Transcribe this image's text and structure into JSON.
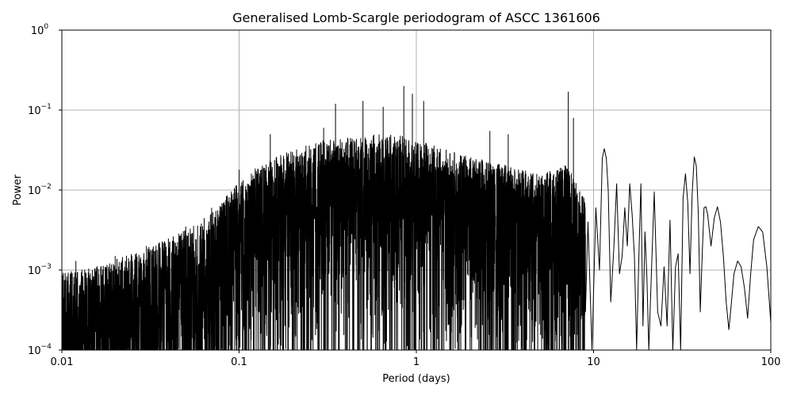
{
  "chart_data": {
    "type": "line",
    "title": "Generalised Lomb-Scargle periodogram of ASCC 1361606",
    "xlabel": "Period (days)",
    "ylabel": "Power",
    "xscale": "log",
    "yscale": "log",
    "xlim": [
      0.01,
      100
    ],
    "ylim": [
      0.0001,
      1
    ],
    "grid": true,
    "x_ticks": [
      {
        "value": 0.01,
        "label": "0.01"
      },
      {
        "value": 0.1,
        "label": "0.1"
      },
      {
        "value": 1,
        "label": "1"
      },
      {
        "value": 10,
        "label": "10"
      },
      {
        "value": 100,
        "label": "100"
      }
    ],
    "y_ticks": [
      {
        "value": 0.0001,
        "base": "10",
        "exp": "−4"
      },
      {
        "value": 0.001,
        "base": "10",
        "exp": "−3"
      },
      {
        "value": 0.01,
        "base": "10",
        "exp": "−2"
      },
      {
        "value": 0.1,
        "base": "10",
        "exp": "−1"
      },
      {
        "value": 1,
        "base": "10",
        "exp": "0"
      }
    ],
    "series": [
      {
        "color": "#000000",
        "envelope_x": [
          0.01,
          0.015,
          0.02,
          0.03,
          0.05,
          0.07,
          0.1,
          0.13,
          0.2,
          0.3,
          0.5,
          0.7,
          1,
          1.5,
          2,
          3,
          5,
          7,
          9
        ],
        "envelope_y": [
          0.0009,
          0.001,
          0.0013,
          0.0018,
          0.003,
          0.005,
          0.012,
          0.02,
          0.03,
          0.04,
          0.045,
          0.05,
          0.04,
          0.03,
          0.025,
          0.02,
          0.015,
          0.02,
          0.008
        ],
        "peaks": [
          {
            "x": 0.012,
            "y": 0.0013
          },
          {
            "x": 0.02,
            "y": 0.0015
          },
          {
            "x": 0.03,
            "y": 0.002
          },
          {
            "x": 0.05,
            "y": 0.0035
          },
          {
            "x": 0.07,
            "y": 0.006
          },
          {
            "x": 0.1,
            "y": 0.018
          },
          {
            "x": 0.15,
            "y": 0.05
          },
          {
            "x": 0.2,
            "y": 0.03
          },
          {
            "x": 0.3,
            "y": 0.06
          },
          {
            "x": 0.35,
            "y": 0.12
          },
          {
            "x": 0.5,
            "y": 0.13
          },
          {
            "x": 0.65,
            "y": 0.11
          },
          {
            "x": 0.85,
            "y": 0.2
          },
          {
            "x": 0.95,
            "y": 0.16
          },
          {
            "x": 1.1,
            "y": 0.13
          },
          {
            "x": 2.6,
            "y": 0.055
          },
          {
            "x": 3.3,
            "y": 0.05
          },
          {
            "x": 7.2,
            "y": 0.17
          },
          {
            "x": 7.7,
            "y": 0.08
          }
        ],
        "tail_x": [
          9.0,
          9.3,
          9.8,
          10.3,
          10.8,
          11.2,
          11.5,
          11.8,
          12.1,
          12.5,
          13.0,
          13.5,
          14.0,
          14.5,
          15.0,
          15.5,
          16.0,
          16.5,
          17.0,
          17.5,
          18.0,
          18.5,
          19.0,
          19.5,
          20.0,
          20.5,
          21.0,
          22.0,
          23.0,
          24.0,
          25.0,
          26.0,
          27.0,
          28.0,
          29.0,
          30.0,
          31.0,
          32.0,
          33.0,
          34.0,
          35.0,
          36.0,
          37.0,
          38.0,
          39.0,
          40.0,
          41.0,
          42.0,
          43.0,
          44.0,
          46.0,
          48.0,
          50.0,
          52.0,
          54.0,
          56.0,
          58.0,
          60.0,
          62.0,
          65.0,
          68.0,
          71.0,
          74.0,
          77.0,
          80.0,
          85.0,
          90.0,
          95.0,
          100.0
        ],
        "tail_y": [
          0.0003,
          0.004,
          0.0001,
          0.006,
          0.001,
          0.025,
          0.033,
          0.025,
          0.01,
          0.0004,
          0.0018,
          0.012,
          0.0009,
          0.0015,
          0.006,
          0.002,
          0.012,
          0.005,
          0.0015,
          0.0001,
          0.0014,
          0.012,
          0.0002,
          0.003,
          0.0008,
          0.0001,
          0.0005,
          0.0095,
          0.0003,
          0.0002,
          0.0011,
          0.0002,
          0.0042,
          0.0001,
          0.0011,
          0.0016,
          0.0001,
          0.008,
          0.016,
          0.007,
          0.0009,
          0.009,
          0.026,
          0.02,
          0.005,
          0.0003,
          0.0015,
          0.006,
          0.0062,
          0.005,
          0.002,
          0.0045,
          0.0062,
          0.004,
          0.0015,
          0.0004,
          0.00018,
          0.0004,
          0.0009,
          0.0013,
          0.0011,
          0.0006,
          0.00025,
          0.0009,
          0.0024,
          0.0035,
          0.003,
          0.0011,
          0.00022
        ]
      }
    ]
  }
}
